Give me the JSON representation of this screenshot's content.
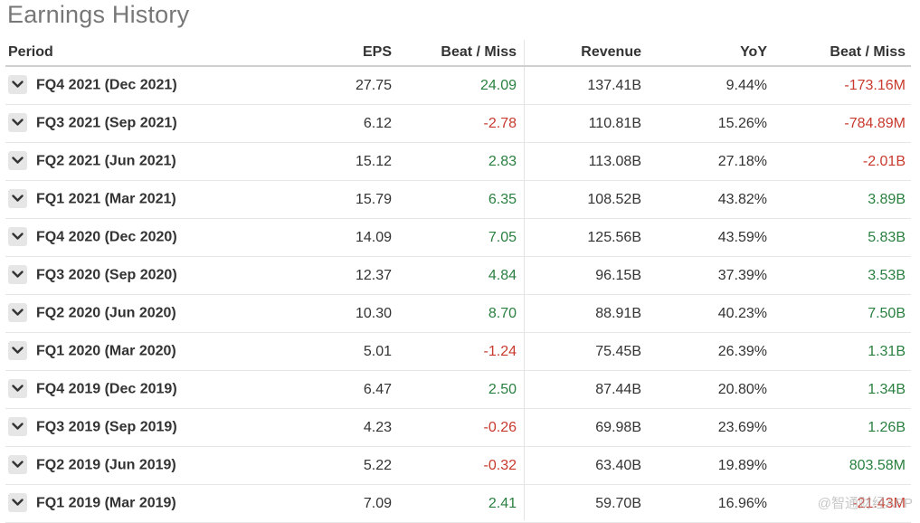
{
  "page_title": "Earnings History",
  "columns": {
    "period": "Period",
    "eps": "EPS",
    "eps_beat": "Beat / Miss",
    "revenue": "Revenue",
    "yoy": "YoY",
    "rev_beat": "Beat / Miss"
  },
  "rows": [
    {
      "period": "FQ4 2021 (Dec 2021)",
      "eps": "27.75",
      "eps_beat": "24.09",
      "eps_beat_sign": "pos",
      "revenue": "137.41B",
      "yoy": "9.44%",
      "rev_beat": "-173.16M",
      "rev_beat_sign": "neg"
    },
    {
      "period": "FQ3 2021 (Sep 2021)",
      "eps": "6.12",
      "eps_beat": "-2.78",
      "eps_beat_sign": "neg",
      "revenue": "110.81B",
      "yoy": "15.26%",
      "rev_beat": "-784.89M",
      "rev_beat_sign": "neg"
    },
    {
      "period": "FQ2 2021 (Jun 2021)",
      "eps": "15.12",
      "eps_beat": "2.83",
      "eps_beat_sign": "pos",
      "revenue": "113.08B",
      "yoy": "27.18%",
      "rev_beat": "-2.01B",
      "rev_beat_sign": "neg"
    },
    {
      "period": "FQ1 2021 (Mar 2021)",
      "eps": "15.79",
      "eps_beat": "6.35",
      "eps_beat_sign": "pos",
      "revenue": "108.52B",
      "yoy": "43.82%",
      "rev_beat": "3.89B",
      "rev_beat_sign": "pos"
    },
    {
      "period": "FQ4 2020 (Dec 2020)",
      "eps": "14.09",
      "eps_beat": "7.05",
      "eps_beat_sign": "pos",
      "revenue": "125.56B",
      "yoy": "43.59%",
      "rev_beat": "5.83B",
      "rev_beat_sign": "pos"
    },
    {
      "period": "FQ3 2020 (Sep 2020)",
      "eps": "12.37",
      "eps_beat": "4.84",
      "eps_beat_sign": "pos",
      "revenue": "96.15B",
      "yoy": "37.39%",
      "rev_beat": "3.53B",
      "rev_beat_sign": "pos"
    },
    {
      "period": "FQ2 2020 (Jun 2020)",
      "eps": "10.30",
      "eps_beat": "8.70",
      "eps_beat_sign": "pos",
      "revenue": "88.91B",
      "yoy": "40.23%",
      "rev_beat": "7.50B",
      "rev_beat_sign": "pos"
    },
    {
      "period": "FQ1 2020 (Mar 2020)",
      "eps": "5.01",
      "eps_beat": "-1.24",
      "eps_beat_sign": "neg",
      "revenue": "75.45B",
      "yoy": "26.39%",
      "rev_beat": "1.31B",
      "rev_beat_sign": "pos"
    },
    {
      "period": "FQ4 2019 (Dec 2019)",
      "eps": "6.47",
      "eps_beat": "2.50",
      "eps_beat_sign": "pos",
      "revenue": "87.44B",
      "yoy": "20.80%",
      "rev_beat": "1.34B",
      "rev_beat_sign": "pos"
    },
    {
      "period": "FQ3 2019 (Sep 2019)",
      "eps": "4.23",
      "eps_beat": "-0.26",
      "eps_beat_sign": "neg",
      "revenue": "69.98B",
      "yoy": "23.69%",
      "rev_beat": "1.26B",
      "rev_beat_sign": "pos"
    },
    {
      "period": "FQ2 2019 (Jun 2019)",
      "eps": "5.22",
      "eps_beat": "-0.32",
      "eps_beat_sign": "neg",
      "revenue": "63.40B",
      "yoy": "19.89%",
      "rev_beat": "803.58M",
      "rev_beat_sign": "pos"
    },
    {
      "period": "FQ1 2019 (Mar 2019)",
      "eps": "7.09",
      "eps_beat": "2.41",
      "eps_beat_sign": "pos",
      "revenue": "59.70B",
      "yoy": "16.96%",
      "rev_beat": "-21.43M",
      "rev_beat_sign": "neg"
    }
  ],
  "watermark": "@智通财经APP",
  "colors": {
    "positive": "#2a8040",
    "negative": "#c83a2e",
    "header_border": "#cfcfcf",
    "title": "#777777"
  },
  "icons": {
    "row_toggle": "chevron-down-icon"
  }
}
